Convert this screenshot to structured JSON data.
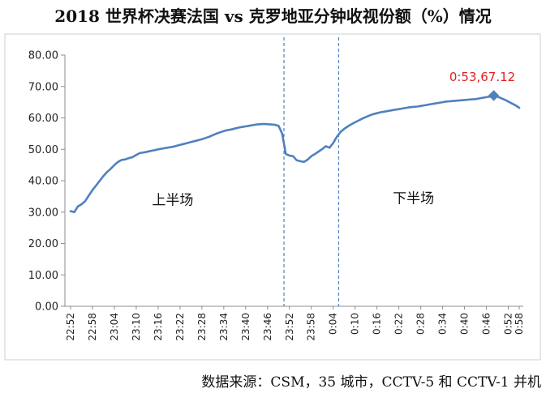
{
  "title": "2018 世界杯决赛法国 vs 克罗地亚分钟收视份额（%）情况",
  "source": "数据来源：CSM，35 城市，CCTV-5 和 CCTV-1 并机",
  "chart_data": {
    "type": "line",
    "title": "2018 世界杯决赛法国 vs 克罗地亚分钟收视份额（%）情况",
    "xlabel": "",
    "ylabel": "",
    "ylim": [
      0,
      80
    ],
    "yticks": [
      0,
      10,
      20,
      30,
      40,
      50,
      60,
      70,
      80
    ],
    "ytick_labels": [
      "0.00",
      "10.00",
      "20.00",
      "30.00",
      "40.00",
      "50.00",
      "60.00",
      "70.00",
      "80.00"
    ],
    "x_tick_labels": [
      "22:52",
      "22:58",
      "23:04",
      "23:10",
      "23:16",
      "23:22",
      "23:28",
      "23:34",
      "23:40",
      "23:46",
      "23:52",
      "23:58",
      "0:04",
      "0:10",
      "0:16",
      "0:22",
      "0:28",
      "0:34",
      "0:40",
      "0:46",
      "0:52",
      "0:58"
    ],
    "grid": false,
    "line_color": "#4f81bd",
    "series": [
      {
        "values": [
          30.3,
          30.0,
          31.8,
          32.5,
          33.5,
          35.3,
          37.0,
          38.5,
          40.0,
          41.5,
          42.8,
          43.8,
          45.0,
          46.0,
          46.6,
          46.8,
          47.2,
          47.5,
          48.2,
          48.8,
          49.0,
          49.2,
          49.5,
          49.7,
          50.0,
          50.2,
          50.4,
          50.6,
          50.8,
          51.1,
          51.4,
          51.7,
          52.0,
          52.3,
          52.6,
          52.9,
          53.2,
          53.6,
          54.0,
          54.5,
          55.0,
          55.4,
          55.8,
          56.1,
          56.3,
          56.6,
          56.9,
          57.1,
          57.3,
          57.5,
          57.7,
          57.9,
          58.0,
          58.1,
          58.0,
          57.9,
          57.8,
          57.5,
          55.0,
          48.5,
          48.0,
          47.8,
          46.5,
          46.2,
          46.0,
          46.7,
          47.8,
          48.5,
          49.3,
          50.1,
          51.0,
          50.5,
          52.0,
          54.0,
          55.5,
          56.5,
          57.3,
          58.0,
          58.6,
          59.2,
          59.8,
          60.3,
          60.8,
          61.2,
          61.5,
          61.8,
          62.0,
          62.2,
          62.4,
          62.6,
          62.8,
          63.0,
          63.2,
          63.4,
          63.5,
          63.6,
          63.8,
          64.0,
          64.2,
          64.4,
          64.6,
          64.8,
          65.0,
          65.2,
          65.3,
          65.4,
          65.5,
          65.6,
          65.7,
          65.8,
          65.9,
          66.0,
          66.2,
          66.4,
          66.6,
          66.8,
          67.12,
          66.8,
          66.3,
          65.8,
          65.2,
          64.6,
          64.0,
          63.2
        ]
      }
    ],
    "dividers": [
      {
        "after_index": 58,
        "style": "dashed",
        "color": "#4f81bd"
      },
      {
        "after_index": 73,
        "style": "dashed",
        "color": "#4f81bd"
      }
    ],
    "annotations": [
      {
        "text": "上半场",
        "x_index": 28,
        "y": 35.0
      },
      {
        "text": "下半场",
        "x_index": 94,
        "y": 35.5
      },
      {
        "text": "0:53,67.12",
        "x_index": 116,
        "y": 67.12,
        "marker": "diamond",
        "color": "#e02020"
      }
    ]
  }
}
